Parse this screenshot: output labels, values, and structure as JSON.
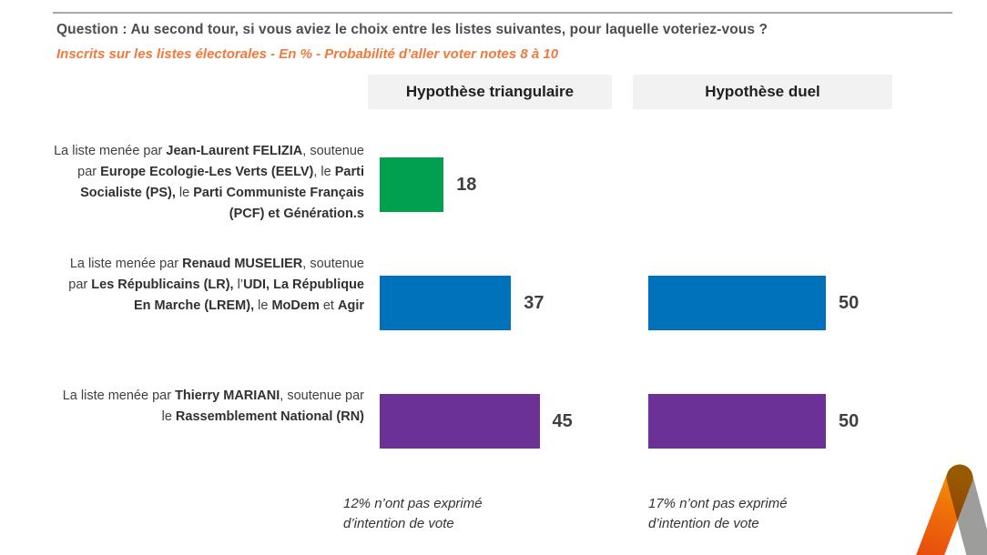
{
  "header": {
    "question": "Question : Au second tour, si vous aviez le choix entre les listes suivantes, pour laquelle voteriez-vous ?",
    "subtitle": "Inscrits sur les listes électorales - En % - Probabilité d’aller voter notes 8 à 10"
  },
  "columns": {
    "triangulaire": {
      "label": "Hypothèse triangulaire",
      "footnote": "12% n’ont pas exprimé d’intention de vote"
    },
    "duel": {
      "label": "Hypothèse duel",
      "footnote": "17% n’ont pas exprimé d’intention de vote"
    }
  },
  "rows": [
    {
      "label_segments": [
        {
          "t": "La liste menée par ",
          "b": false
        },
        {
          "t": "Jean-Laurent FELIZIA",
          "b": true
        },
        {
          "t": ", soutenue par ",
          "b": false
        },
        {
          "t": "Europe Ecologie-Les Verts (EELV)",
          "b": true
        },
        {
          "t": ", le ",
          "b": false
        },
        {
          "t": "Parti Socialiste (PS),",
          "b": true
        },
        {
          "t": " le ",
          "b": false
        },
        {
          "t": "Parti Communiste Français (PCF) et Génération.s",
          "b": true
        }
      ]
    },
    {
      "label_segments": [
        {
          "t": "La liste menée par ",
          "b": false
        },
        {
          "t": "Renaud MUSELIER",
          "b": true
        },
        {
          "t": ", soutenue par ",
          "b": false
        },
        {
          "t": "Les Républicains (LR),",
          "b": true
        },
        {
          "t": " l’",
          "b": false
        },
        {
          "t": "UDI, La République En Marche (LREM),",
          "b": true
        },
        {
          "t": " le ",
          "b": false
        },
        {
          "t": "MoDem",
          "b": true
        },
        {
          "t": " et ",
          "b": false
        },
        {
          "t": "Agir",
          "b": true
        }
      ]
    },
    {
      "label_segments": [
        {
          "t": "La liste menée par ",
          "b": false
        },
        {
          "t": "Thierry MARIANI",
          "b": true
        },
        {
          "t": ", soutenue par le ",
          "b": false
        },
        {
          "t": "Rassemblement National (RN)",
          "b": true
        }
      ]
    }
  ],
  "chart_data": {
    "type": "bar",
    "orientation": "horizontal",
    "title": "Question : Au second tour, si vous aviez le choix entre les listes suivantes, pour laquelle voteriez-vous ?",
    "subtitle": "Inscrits sur les listes électorales - En % - Probabilité d’aller voter notes 8 à 10",
    "unit": "%",
    "categories": [
      "La liste menée par Jean-Laurent FELIZIA, soutenue par Europe Ecologie-Les Verts (EELV), le Parti Socialiste (PS), le Parti Communiste Français (PCF) et Génération.s",
      "La liste menée par Renaud MUSELIER, soutenue par Les Républicains (LR), l’UDI, La République En Marche (LREM), le MoDem et Agir",
      "La liste menée par Thierry MARIANI, soutenue par le Rassemblement National (RN)"
    ],
    "series": [
      {
        "name": "Hypothèse triangulaire",
        "values": [
          18,
          37,
          45
        ]
      },
      {
        "name": "Hypothèse duel",
        "values": [
          null,
          50,
          50
        ]
      }
    ],
    "bar_colors_by_row": [
      "#00a04f",
      "#0072bc",
      "#6c3197"
    ],
    "footnotes": [
      "12% n’ont pas exprimé d’intention de vote",
      "17% n’ont pas exprimé d’intention de vote"
    ],
    "xlim": [
      0,
      60
    ],
    "grid": false,
    "legend_position": "column-headers-top",
    "value_labels": "right-of-bar"
  },
  "logo": {
    "orange_bottom": "#e7490d",
    "orange_top": "#f39200",
    "gray": "#9d9d9c"
  }
}
